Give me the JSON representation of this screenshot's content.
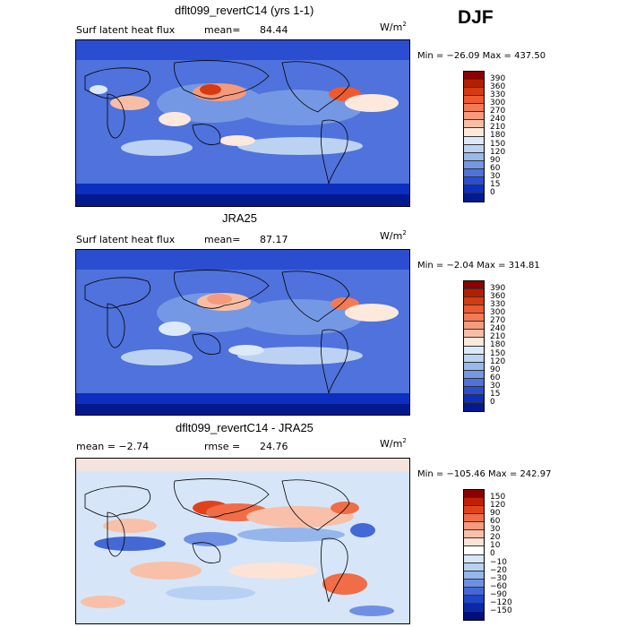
{
  "season": "DJF",
  "panels": [
    {
      "title": "dflt099_revertC14 (yrs 1-1)",
      "left_label": "Surf latent heat flux",
      "stat_label": "mean=",
      "stat_value": "84.44",
      "units": "W/m",
      "units_exp": "2",
      "minmax": "Min = −26.09 Max = 437.50",
      "colorbar_labels": [
        "390",
        "360",
        "330",
        "300",
        "270",
        "240",
        "210",
        "180",
        "150",
        "120",
        "90",
        "60",
        "30",
        "15",
        "0"
      ],
      "palette": "abs"
    },
    {
      "title": "JRA25",
      "left_label": "Surf latent heat flux",
      "stat_label": "mean=",
      "stat_value": "87.17",
      "units": "W/m",
      "units_exp": "2",
      "minmax": "Min = −2.04 Max = 314.81",
      "colorbar_labels": [
        "390",
        "360",
        "330",
        "300",
        "270",
        "240",
        "210",
        "180",
        "150",
        "120",
        "90",
        "60",
        "30",
        "15",
        "0"
      ],
      "palette": "abs"
    },
    {
      "title": "dflt099_revertC14 - JRA25",
      "left_label": "mean = −2.74",
      "stat_label": "rmse =",
      "stat_value": "24.76",
      "units": "W/m",
      "units_exp": "2",
      "minmax": "Min = −105.46 Max = 242.97",
      "colorbar_labels": [
        "150",
        "120",
        "90",
        "60",
        "30",
        "20",
        "10",
        "0",
        "−10",
        "−20",
        "−30",
        "−60",
        "−90",
        "−120",
        "−150"
      ],
      "palette": "diff"
    }
  ],
  "colors": {
    "abs_palette": [
      "#8b0000",
      "#b22000",
      "#d63a10",
      "#ee5a30",
      "#f27a55",
      "#f59a7c",
      "#f7bea6",
      "#fde8dc",
      "#dce9f8",
      "#bcd2f2",
      "#99b8ec",
      "#7598e4",
      "#4f72dc",
      "#2b4ed0",
      "#0d2fbf",
      "#031a8f"
    ],
    "diff_palette": [
      "#8b0000",
      "#c02000",
      "#e2421a",
      "#f06d48",
      "#f59a7c",
      "#f8c0a8",
      "#fde2d6",
      "#ffffff",
      "#d6e6f8",
      "#b8d1f2",
      "#95b6ec",
      "#6f90e2",
      "#4468d6",
      "#2046c8",
      "#0a28a8",
      "#020f7a"
    ],
    "land_outline": "#000000"
  }
}
